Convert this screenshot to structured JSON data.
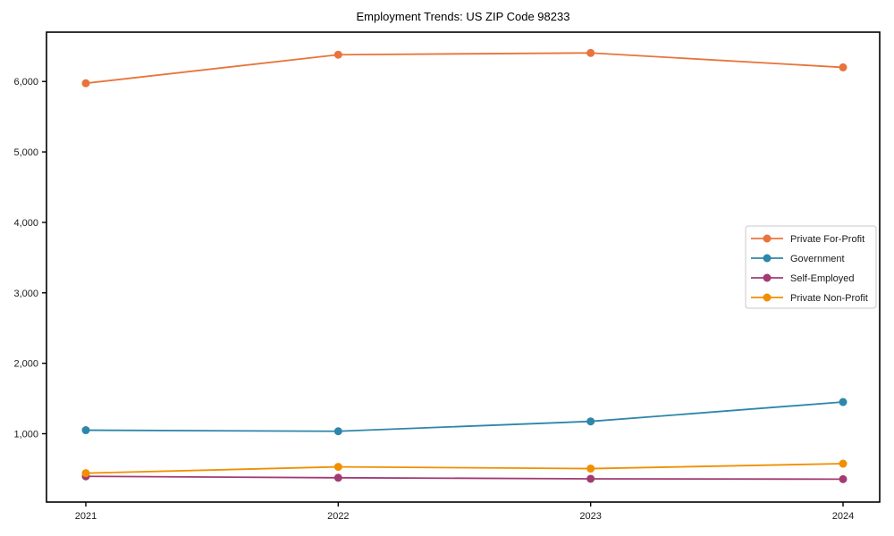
{
  "chart_data": {
    "type": "line",
    "title": "Employment Trends: US ZIP Code 98233",
    "x": [
      "2021",
      "2022",
      "2023",
      "2024"
    ],
    "series": [
      {
        "name": "Private For-Profit",
        "color": "#E8743B",
        "values": [
          5975,
          6380,
          6405,
          6200
        ]
      },
      {
        "name": "Government",
        "color": "#2E86AB",
        "values": [
          1050,
          1035,
          1175,
          1450
        ]
      },
      {
        "name": "Self-Employed",
        "color": "#A23B72",
        "values": [
          395,
          375,
          360,
          355
        ]
      },
      {
        "name": "Private Non-Profit",
        "color": "#F18F01",
        "values": [
          440,
          530,
          505,
          575
        ]
      }
    ],
    "xlabel": "",
    "ylabel": "",
    "ylim": [
      30,
      6700
    ],
    "yticks": [
      1000,
      2000,
      3000,
      4000,
      5000,
      6000
    ],
    "ytick_labels": [
      "1,000",
      "2,000",
      "3,000",
      "4,000",
      "5,000",
      "6,000"
    ],
    "xtick_labels": [
      "2021",
      "2022",
      "2023",
      "2024"
    ],
    "grid": false,
    "marker": "circle",
    "legend_position": "center-right",
    "legend_entries": [
      "Private For-Profit",
      "Government",
      "Self-Employed",
      "Private Non-Profit"
    ],
    "background_color": "#ffffff",
    "axis_color": "#000000"
  }
}
